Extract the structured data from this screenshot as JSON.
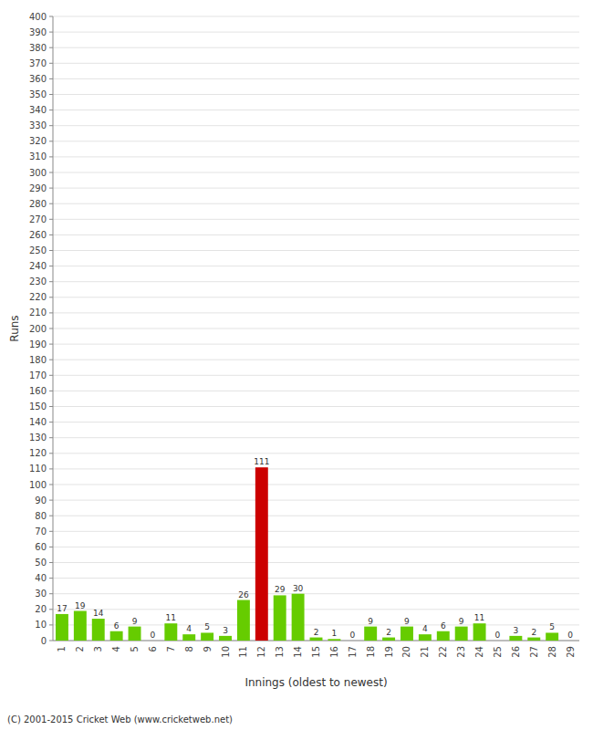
{
  "chart_data": {
    "type": "bar",
    "xlabel": "Innings (oldest to newest)",
    "ylabel": "Runs",
    "categories": [
      "1",
      "2",
      "3",
      "4",
      "5",
      "6",
      "7",
      "8",
      "9",
      "10",
      "11",
      "12",
      "13",
      "14",
      "15",
      "16",
      "17",
      "18",
      "19",
      "20",
      "21",
      "22",
      "23",
      "24",
      "25",
      "26",
      "27",
      "28",
      "29"
    ],
    "values": [
      17,
      19,
      14,
      6,
      9,
      0,
      11,
      4,
      5,
      3,
      26,
      111,
      29,
      30,
      2,
      1,
      0,
      9,
      2,
      9,
      4,
      6,
      9,
      11,
      0,
      3,
      2,
      5,
      0
    ],
    "colors": [
      "#66cc00",
      "#66cc00",
      "#66cc00",
      "#66cc00",
      "#66cc00",
      "#66cc00",
      "#66cc00",
      "#66cc00",
      "#66cc00",
      "#66cc00",
      "#66cc00",
      "#cc0000",
      "#66cc00",
      "#66cc00",
      "#66cc00",
      "#66cc00",
      "#66cc00",
      "#66cc00",
      "#66cc00",
      "#66cc00",
      "#66cc00",
      "#66cc00",
      "#66cc00",
      "#66cc00",
      "#66cc00",
      "#66cc00",
      "#66cc00",
      "#66cc00",
      "#66cc00"
    ],
    "ylim": [
      0,
      400
    ],
    "yticks": [
      0,
      10,
      20,
      30,
      40,
      50,
      60,
      70,
      80,
      90,
      100,
      110,
      120,
      130,
      140,
      150,
      160,
      170,
      180,
      190,
      200,
      210,
      220,
      230,
      240,
      250,
      260,
      270,
      280,
      290,
      300,
      310,
      320,
      330,
      340,
      350,
      360,
      370,
      380,
      390,
      400
    ],
    "grid": true,
    "data_labels": true,
    "annotations": [
      "(C) 2001-2015 Cricket Web (www.cricketweb.net)"
    ]
  }
}
